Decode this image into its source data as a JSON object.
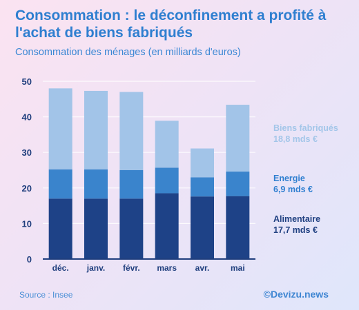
{
  "title": "Consommation : le déconfinement a profité à l'achat de biens fabriqués",
  "subtitle": "Consommation des ménages (en milliards d'euros)",
  "source": "Source : Insee",
  "brand": "©Devizu.news",
  "legend": [
    {
      "name": "Biens fabriqués",
      "value": "18,8 mds €",
      "color": "#a3c6e9"
    },
    {
      "name": "Energie",
      "value": "6,9 mds €",
      "color": "#2f7fd0"
    },
    {
      "name": "Alimentaire",
      "value": "17,7 mds €",
      "color": "#1e3f80"
    }
  ],
  "chart_data": {
    "type": "bar",
    "stacked": true,
    "categories": [
      "déc.",
      "janv.",
      "févr.",
      "mars",
      "avr.",
      "mai"
    ],
    "series": [
      {
        "name": "Alimentaire",
        "color": "#1e4287",
        "values": [
          17.0,
          17.0,
          17.0,
          18.5,
          17.6,
          17.7
        ]
      },
      {
        "name": "Energie",
        "color": "#3a84cc",
        "values": [
          8.2,
          8.2,
          8.0,
          7.2,
          5.4,
          6.9
        ]
      },
      {
        "name": "Biens fabriqués",
        "color": "#a2c4e8",
        "values": [
          22.8,
          22.1,
          22.0,
          13.2,
          8.1,
          18.8
        ]
      }
    ],
    "ylim": [
      0,
      50
    ],
    "yticks": [
      0,
      10,
      20,
      30,
      40,
      50
    ],
    "grid": true
  }
}
